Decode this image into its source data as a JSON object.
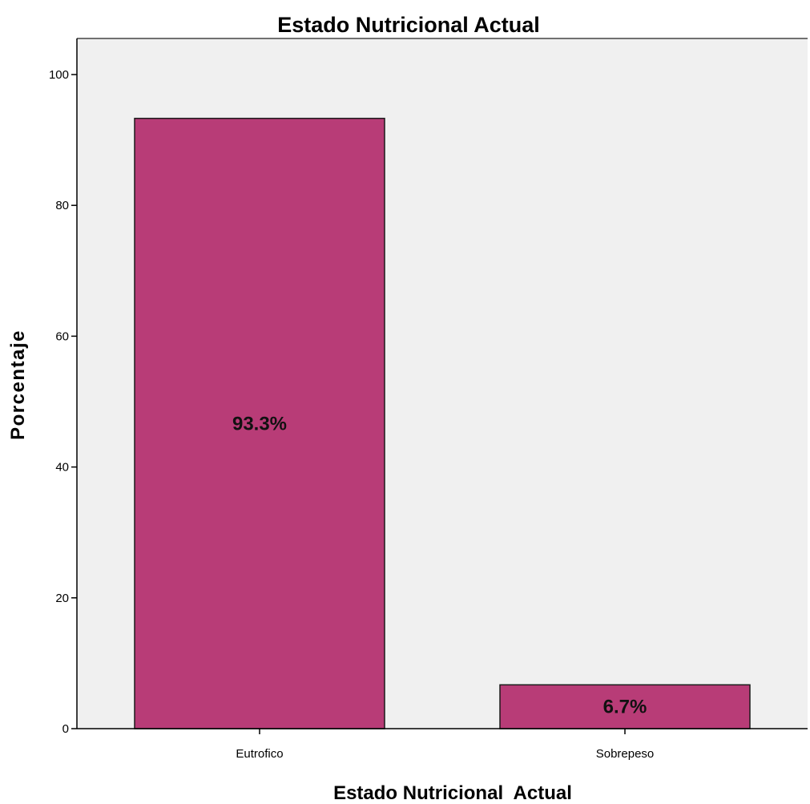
{
  "chart_data": {
    "type": "bar",
    "title": "Estado Nutricional Actual",
    "xlabel": "Estado Nutricional  Actual",
    "ylabel": "Porcentaje",
    "categories": [
      "Eutrofico",
      "Sobrepeso"
    ],
    "values": [
      93.3,
      6.7
    ],
    "data_labels": [
      "93.3%",
      "6.7%"
    ],
    "ylim": [
      0,
      100
    ],
    "yticks": [
      "0",
      "20",
      "40",
      "60",
      "80",
      "100"
    ],
    "grid": false,
    "legend": "none",
    "colors": {
      "bar": "#b83c77",
      "plot_background": "#f0f0f0",
      "axis": "#000000"
    }
  }
}
